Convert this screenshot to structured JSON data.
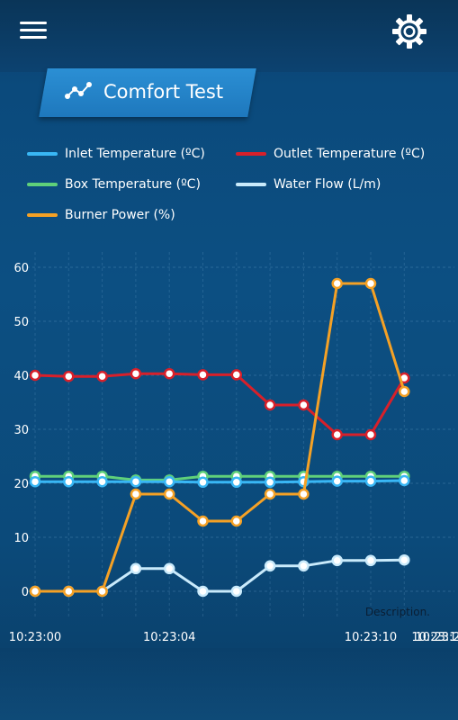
{
  "header": {
    "menu_icon": "hamburger-menu-icon",
    "settings_icon": "gear-icon",
    "title": "Comfort Test",
    "title_icon": "chart-line-icon"
  },
  "colors": {
    "inlet": "#39b7f5",
    "outlet": "#d8202a",
    "box": "#5fd07a",
    "flow": "#c9eafb",
    "burner": "#f5a125"
  },
  "chart_data": {
    "type": "line",
    "x": [
      "10:23:00",
      "10:23:01",
      "10:23:02",
      "10:23:03",
      "10:23:04",
      "10:23:05",
      "10:23:06",
      "10:23:07",
      "10:23:08",
      "10:23:09",
      "10:23:10",
      "10:23:11"
    ],
    "x_tick_labels": [
      "10:23:00",
      "10:23:04",
      "10:23:10",
      "10:23:16",
      "10:23:2"
    ],
    "y_ticks": [
      "0",
      "10",
      "20",
      "30",
      "40",
      "50",
      "60"
    ],
    "ylim": [
      0,
      60
    ],
    "grid": true,
    "legend_position": "top",
    "annotation": "Description.",
    "series": [
      {
        "name": "Inlet Temperature (ºC)",
        "color_key": "inlet",
        "values": [
          20.3,
          20.3,
          20.3,
          20.3,
          20.3,
          20.2,
          20.2,
          20.2,
          20.3,
          20.4,
          20.4,
          20.5
        ]
      },
      {
        "name": "Outlet Temperature (ºC)",
        "color_key": "outlet",
        "values": [
          40,
          39.8,
          39.8,
          40.3,
          40.3,
          40.1,
          40.1,
          34.5,
          34.5,
          29,
          29,
          39.5
        ]
      },
      {
        "name": "Box Temperature (ºC)",
        "color_key": "box",
        "values": [
          21.3,
          21.3,
          21.3,
          20.6,
          20.6,
          21.3,
          21.3,
          21.3,
          21.3,
          21.3,
          21.3,
          21.3
        ]
      },
      {
        "name": "Water Flow (L/m)",
        "color_key": "flow",
        "values": [
          0,
          0,
          0,
          4.2,
          4.2,
          0,
          0,
          4.7,
          4.7,
          5.7,
          5.7,
          5.8
        ]
      },
      {
        "name": "Burner Power (%)",
        "color_key": "burner",
        "values": [
          0,
          0,
          0,
          18,
          18,
          13,
          13,
          18,
          18,
          57,
          57,
          37
        ]
      }
    ]
  }
}
